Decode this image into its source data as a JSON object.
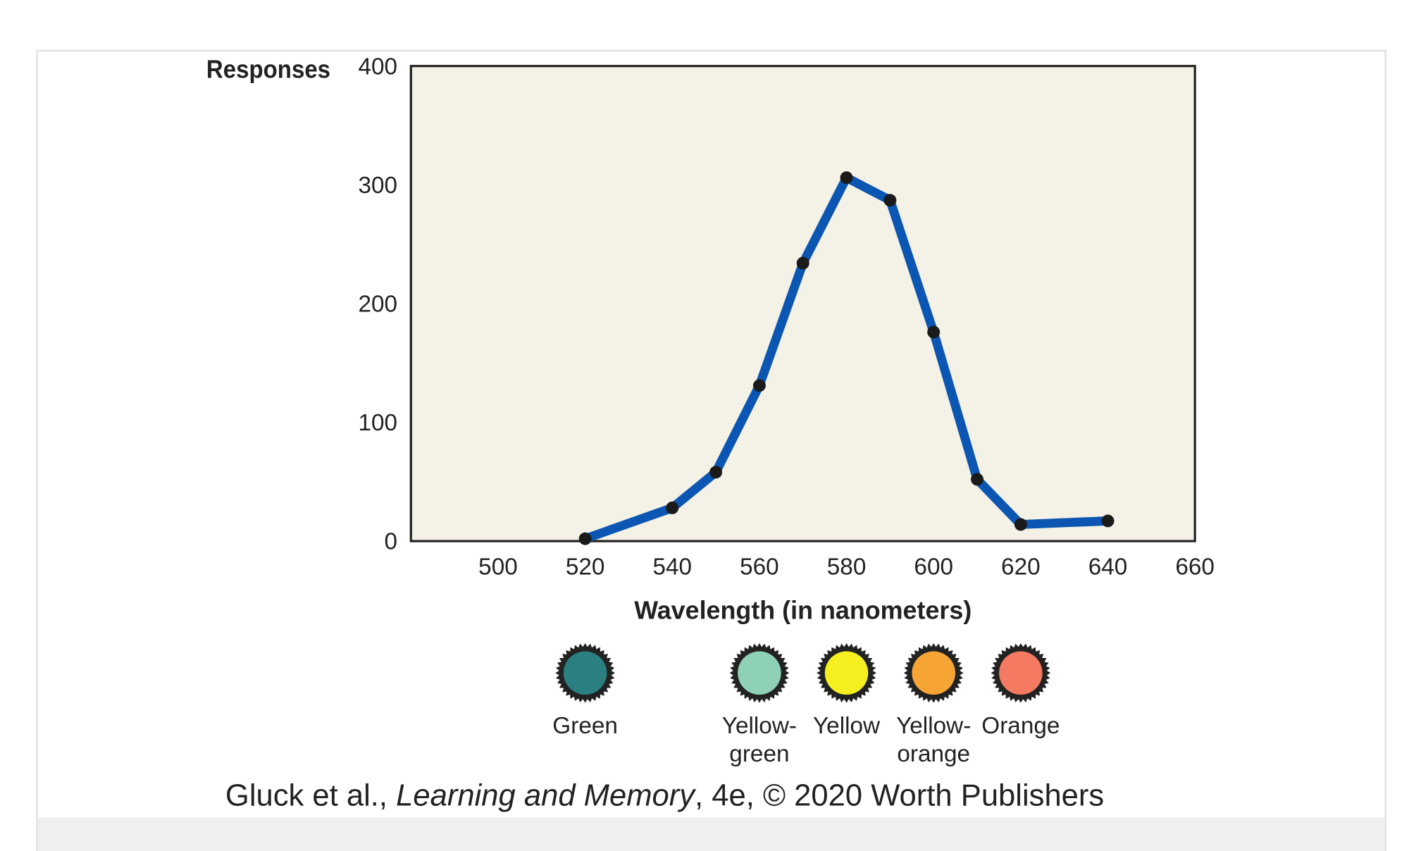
{
  "chart_data": {
    "type": "line",
    "y_label": "Responses",
    "x_label": "Wavelength (in nanometers)",
    "x": [
      520,
      540,
      550,
      560,
      570,
      580,
      590,
      600,
      610,
      620,
      640
    ],
    "series": [
      {
        "name": "Responses",
        "color": "#0b55b3",
        "values": [
          2,
          28,
          58,
          131,
          234,
          306,
          287,
          176,
          52,
          14,
          17
        ]
      }
    ],
    "xlim": [
      480,
      660
    ],
    "xticks": [
      500,
      520,
      540,
      560,
      580,
      600,
      620,
      640,
      660
    ],
    "ylim": [
      0,
      400
    ],
    "yticks": [
      0,
      100,
      200,
      300,
      400
    ],
    "plot_background": "#f4f1e6",
    "color_chips": [
      {
        "x": 520,
        "color": "#2a7f80",
        "label": [
          "Green"
        ]
      },
      {
        "x": 560,
        "color": "#8fd1b7",
        "label": [
          "Yellow-",
          "green"
        ]
      },
      {
        "x": 580,
        "color": "#f5ef1f",
        "label": [
          "Yellow"
        ]
      },
      {
        "x": 600,
        "color": "#f6a535",
        "label": [
          "Yellow-",
          "orange"
        ]
      },
      {
        "x": 620,
        "color": "#f47a62",
        "label": [
          "Orange"
        ]
      }
    ],
    "caption": [
      "Gluck et al., ",
      "Learning and Memory",
      ", 4e, © 2020 Worth Publishers"
    ]
  }
}
